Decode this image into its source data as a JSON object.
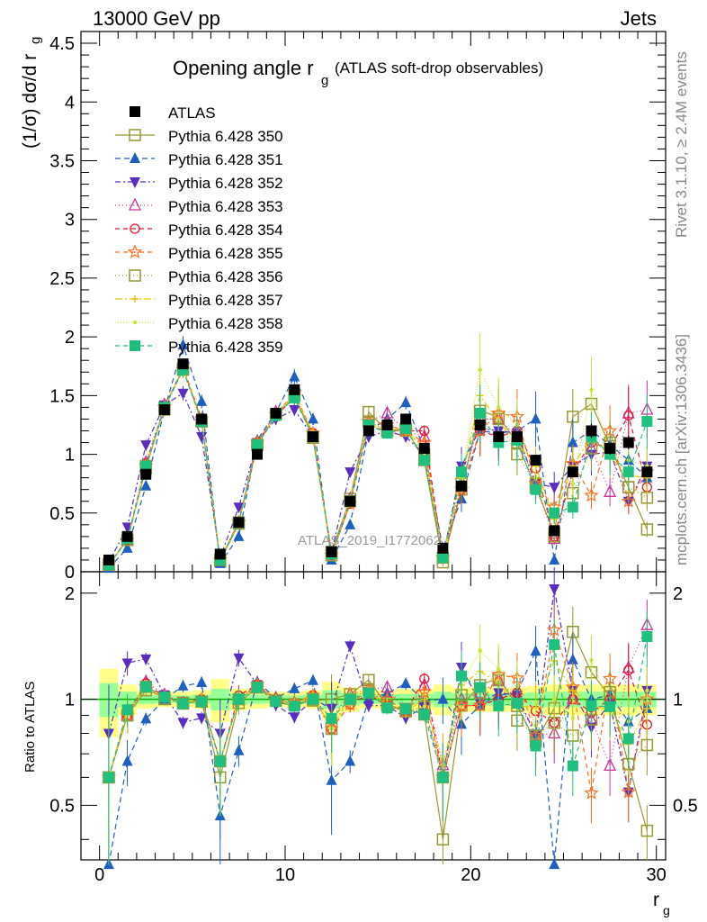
{
  "header": {
    "left": "13000 GeV pp",
    "right": "Jets"
  },
  "side_text": {
    "rivet": "Rivet 3.1.10, ≥ 2.4M events",
    "mcplots": "mcplots.cern.ch [arXiv:1306.3436]"
  },
  "chart_data": {
    "type": "scatter",
    "title": "Opening angle r",
    "title_sub": "g",
    "title_suffix": "(ATLAS soft-drop observables)",
    "watermark": "ATLAS_2019_I1772062",
    "ylabel": "(1/σ) dσ/d r",
    "ylabel_sub": "g",
    "ratio_ylabel": "Ratio to ATLAS",
    "xlabel": "r",
    "xlabel_sub": "g",
    "xlim": [
      -1,
      30.5
    ],
    "ylim": [
      0,
      4.6
    ],
    "ratio_ylim": [
      0.35,
      2.3
    ],
    "xticks": [
      "0",
      "10",
      "20",
      "30"
    ],
    "yticks": [
      "0",
      "0.5",
      "1",
      "1.5",
      "2",
      "2.5",
      "3",
      "3.5",
      "4",
      "4.5"
    ],
    "ratio_yticks": [
      "0.5",
      "1",
      "2"
    ],
    "legend_position": "top-left",
    "x": [
      0.5,
      1.5,
      2.5,
      3.5,
      4.5,
      5.5,
      6.5,
      7.5,
      8.5,
      9.5,
      10.5,
      11.5,
      12.5,
      13.5,
      14.5,
      15.5,
      16.5,
      17.5,
      18.5,
      19.5,
      20.5,
      21.5,
      22.5,
      23.5,
      24.5,
      25.5,
      26.5,
      27.5,
      28.5,
      29.5
    ],
    "atlas": [
      0.1,
      0.3,
      0.83,
      1.38,
      1.77,
      1.3,
      0.15,
      0.42,
      1.0,
      1.35,
      1.55,
      1.15,
      0.17,
      0.6,
      1.2,
      1.25,
      1.3,
      1.05,
      0.2,
      0.73,
      1.25,
      1.15,
      1.15,
      0.95,
      0.35,
      0.85,
      1.2,
      1.05,
      1.1,
      0.85
    ],
    "series": [
      {
        "name": "Pythia 6.428 350",
        "color": "#999933",
        "marker": "square-open",
        "dash": "",
        "values": [
          0.06,
          0.27,
          0.88,
          1.4,
          1.73,
          1.28,
          0.09,
          0.41,
          1.08,
          1.34,
          1.5,
          1.14,
          0.17,
          0.62,
          1.36,
          1.2,
          1.22,
          0.95,
          0.08,
          0.7,
          1.37,
          1.32,
          1.1,
          0.72,
          0.33,
          1.32,
          1.43,
          1.07,
          0.72,
          0.36
        ]
      },
      {
        "name": "Pythia 6.428 351",
        "color": "#1f5fbf",
        "marker": "triangle-up",
        "dash": "6,4",
        "values": [
          0.03,
          0.2,
          0.73,
          1.38,
          1.93,
          1.45,
          0.07,
          0.3,
          1.12,
          1.36,
          1.66,
          1.3,
          0.1,
          0.4,
          1.2,
          1.3,
          1.44,
          1.04,
          0.2,
          0.62,
          1.2,
          1.18,
          1.2,
          1.3,
          0.1,
          1.1,
          1.2,
          1.08,
          0.95,
          0.8
        ]
      },
      {
        "name": "Pythia 6.428 352",
        "color": "#5a2dc0",
        "marker": "triangle-down",
        "dash": "6,3,2,3",
        "values": [
          0.08,
          0.38,
          1.08,
          1.42,
          1.52,
          1.15,
          0.12,
          0.55,
          1.1,
          1.3,
          1.38,
          1.15,
          0.16,
          0.85,
          1.15,
          1.2,
          1.15,
          1.0,
          0.12,
          0.9,
          1.22,
          1.2,
          1.18,
          0.75,
          0.72,
          0.9,
          1.0,
          1.02,
          0.6,
          0.9
        ]
      },
      {
        "name": "Pythia 6.428 353",
        "color": "#cc3399",
        "marker": "triangle-up-open",
        "dash": "1,3",
        "values": [
          0.06,
          0.27,
          0.93,
          1.42,
          1.72,
          1.28,
          0.1,
          0.42,
          1.1,
          1.36,
          1.5,
          1.16,
          0.15,
          0.62,
          1.28,
          1.35,
          1.2,
          1.15,
          0.13,
          0.73,
          1.3,
          1.3,
          1.15,
          0.75,
          0.28,
          0.85,
          1.05,
          0.68,
          1.35,
          1.38
        ]
      },
      {
        "name": "Pythia 6.428 354",
        "color": "#e8112d",
        "marker": "circle-open",
        "dash": "5,4",
        "values": [
          0.06,
          0.27,
          0.92,
          1.4,
          1.74,
          1.3,
          0.1,
          0.43,
          1.1,
          1.33,
          1.48,
          1.18,
          0.14,
          0.58,
          1.24,
          1.2,
          1.2,
          1.2,
          0.12,
          0.7,
          1.2,
          1.15,
          1.2,
          0.88,
          0.3,
          0.85,
          1.1,
          1.05,
          1.33,
          0.72
        ]
      },
      {
        "name": "Pythia 6.428 355",
        "color": "#ff6d1f",
        "marker": "star-open",
        "dash": "5,4",
        "values": [
          0.06,
          0.27,
          0.9,
          1.4,
          1.72,
          1.3,
          0.1,
          0.42,
          1.1,
          1.34,
          1.52,
          1.18,
          0.14,
          0.58,
          1.28,
          1.25,
          1.2,
          1.1,
          0.12,
          0.7,
          1.2,
          1.35,
          1.32,
          0.75,
          0.55,
          0.92,
          0.65,
          1.2,
          0.6,
          0.85
        ]
      },
      {
        "name": "Pythia 6.428 356",
        "color": "#999933",
        "marker": "square-open",
        "dash": "1,3",
        "values": [
          0.06,
          0.27,
          0.9,
          1.38,
          1.72,
          1.28,
          0.1,
          0.42,
          1.08,
          1.34,
          1.5,
          1.15,
          0.14,
          0.6,
          1.28,
          1.2,
          1.2,
          1.0,
          0.12,
          0.75,
          1.3,
          1.3,
          1.0,
          0.75,
          0.3,
          0.67,
          1.05,
          1.1,
          0.72,
          0.63
        ]
      },
      {
        "name": "Pythia 6.428 357",
        "color": "#e6c800",
        "marker": "cross",
        "dash": "8,3,2,3",
        "values": [
          0.06,
          0.28,
          0.9,
          1.4,
          1.73,
          1.3,
          0.1,
          0.42,
          1.08,
          1.34,
          1.5,
          1.18,
          0.14,
          0.62,
          1.25,
          1.22,
          1.2,
          1.05,
          0.13,
          0.8,
          1.5,
          1.28,
          1.1,
          0.9,
          0.45,
          0.9,
          1.15,
          0.98,
          0.82,
          0.8
        ]
      },
      {
        "name": "Pythia 6.428 358",
        "color": "#c8e632",
        "marker": "dot",
        "dash": "1,2",
        "values": [
          0.06,
          0.27,
          0.9,
          1.4,
          1.72,
          1.28,
          0.1,
          0.42,
          1.08,
          1.34,
          1.5,
          1.16,
          0.14,
          0.6,
          1.25,
          1.2,
          1.2,
          1.0,
          0.12,
          0.8,
          1.72,
          1.4,
          1.25,
          0.8,
          0.35,
          0.75,
          1.55,
          1.0,
          0.95,
          0.9
        ]
      },
      {
        "name": "Pythia 6.428 359",
        "color": "#1fbf7f",
        "marker": "square",
        "dash": "5,4",
        "values": [
          0.06,
          0.28,
          0.9,
          1.4,
          1.72,
          1.28,
          0.1,
          0.42,
          1.08,
          1.33,
          1.48,
          1.15,
          0.15,
          0.6,
          1.25,
          1.18,
          1.22,
          0.95,
          0.12,
          0.85,
          1.35,
          1.1,
          1.12,
          0.7,
          0.5,
          0.55,
          1.15,
          1.0,
          0.85,
          1.28
        ]
      }
    ]
  }
}
